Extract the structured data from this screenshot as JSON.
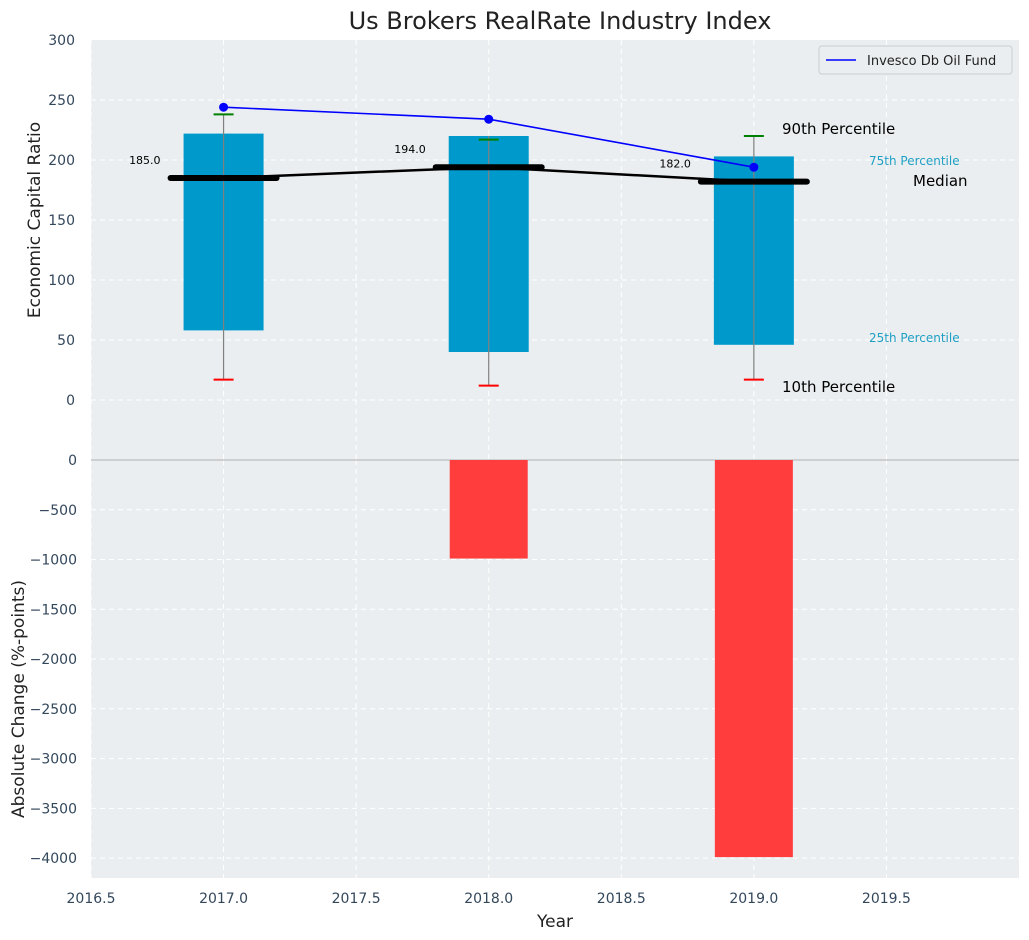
{
  "chart_data": {
    "type": "bar",
    "title": "Us Brokers RealRate Industry Index",
    "xlabel": "Year",
    "x_ticks": [
      "2016.5",
      "2017.0",
      "2017.5",
      "2018.0",
      "2018.5",
      "2019.0",
      "2019.5"
    ],
    "xlim": [
      2016.5,
      2020.0
    ],
    "grid": true,
    "colors": {
      "plot_bg": "#eaeef0",
      "iqr_bar": "#0099cc",
      "median": "#000000",
      "p90_cap": "#008000",
      "p10_cap": "#ff0000",
      "series_line": "#0000ff",
      "change_bar": "#ff3d3d",
      "whisker": "#808080"
    },
    "upper_panel": {
      "ylabel": "Economic Capital Ratio",
      "ylim": [
        0,
        300
      ],
      "y_ticks": [
        "0",
        "50",
        "100",
        "150",
        "200",
        "250",
        "300"
      ],
      "years": [
        2017,
        2018,
        2019
      ],
      "p10": [
        17,
        12,
        17
      ],
      "p25": [
        58,
        40,
        46
      ],
      "median": [
        185,
        194,
        182
      ],
      "median_labels": [
        "185.0",
        "194.0",
        "182.0"
      ],
      "p75": [
        222,
        220,
        203
      ],
      "p90": [
        238,
        217,
        220
      ],
      "series": [
        {
          "name": "Invesco Db Oil Fund",
          "x": [
            2017,
            2018,
            2019
          ],
          "values": [
            244,
            234,
            194
          ]
        }
      ],
      "legend_position": "top-right",
      "annotations": {
        "p90": "90th Percentile",
        "p75": "75th Percentile",
        "median": "Median",
        "p25": "25th Percentile",
        "p10": "10th Percentile"
      }
    },
    "lower_panel": {
      "ylabel": "Absolute Change (%-points)",
      "ylim": [
        -4200,
        0
      ],
      "y_ticks": [
        "0",
        "−500",
        "−1000",
        "−1500",
        "−2000",
        "−2500",
        "−3000",
        "−3500",
        "−4000"
      ],
      "years": [
        2018,
        2019
      ],
      "values": [
        -990,
        -3990
      ]
    }
  }
}
